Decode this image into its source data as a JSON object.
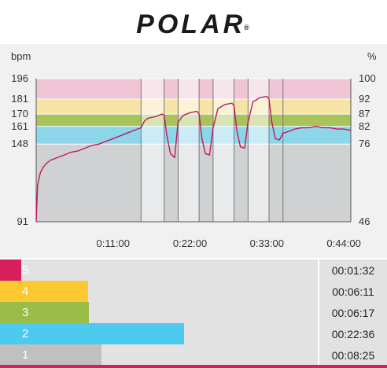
{
  "header": {
    "logo_text": "POLAR",
    "logo_reg": "®"
  },
  "axes": {
    "left_unit": "bpm",
    "right_unit": "%",
    "left_ticks": [
      "196",
      "181",
      "170",
      "161",
      "148",
      "91"
    ],
    "right_ticks": [
      "100",
      "92",
      "87",
      "82",
      "76",
      "46"
    ],
    "x_ticks": [
      "0:11:00",
      "0:22:00",
      "0:33:00",
      "0:44:00"
    ]
  },
  "chart_data": {
    "type": "line",
    "title": "",
    "xlabel": "",
    "ylabel": "bpm",
    "ylim": [
      91,
      196
    ],
    "xlim_minutes": [
      0,
      45
    ],
    "zone_bounds_bpm": [
      91,
      148,
      161,
      170,
      181,
      196
    ],
    "zone_colors": [
      "#cfd1d2",
      "#8dd6ea",
      "#a8c35a",
      "#f6e3a6",
      "#f0c6d6"
    ],
    "x_ticks_minutes": [
      11,
      22,
      33,
      44
    ],
    "interval_lines_minutes": [
      15,
      18.3,
      20.3,
      23.3,
      25.3,
      28.3,
      30.3,
      33.3,
      35.3
    ],
    "series": [
      {
        "color": "#c2185b",
        "x": [
          0,
          0.2,
          0.6,
          1,
          1.5,
          2,
          3,
          4,
          5,
          6,
          7,
          8,
          9,
          10,
          11,
          12,
          13,
          14,
          15,
          15.5,
          16,
          17,
          18,
          18.3,
          18.7,
          19.2,
          19.8,
          20.3,
          21,
          22,
          23,
          23.3,
          23.7,
          24.2,
          24.8,
          25.3,
          26,
          27,
          28,
          28.3,
          28.7,
          29.2,
          29.8,
          30.3,
          31,
          32,
          33,
          33.3,
          33.7,
          34.2,
          34.8,
          35.3,
          36,
          37,
          38,
          39,
          40,
          41,
          42,
          43,
          44,
          45
        ],
        "y": [
          91,
          118,
          127,
          131,
          134,
          136,
          138,
          140,
          142,
          143,
          145,
          147,
          148,
          150,
          152,
          154,
          156,
          158,
          160,
          165,
          167,
          168,
          170,
          169,
          154,
          141,
          138,
          164,
          169,
          171,
          172,
          170,
          152,
          141,
          140,
          160,
          174,
          177,
          178,
          176,
          158,
          146,
          145,
          164,
          179,
          182,
          183,
          181,
          164,
          152,
          151,
          156,
          157,
          159,
          160,
          160,
          161,
          160,
          160,
          159,
          159,
          158
        ]
      }
    ]
  },
  "zones": [
    {
      "num": "5",
      "color": "#d81e5b",
      "fraction": 0.068,
      "time": "00:01:32"
    },
    {
      "num": "4",
      "color": "#fdc830",
      "fraction": 0.277,
      "time": "00:06:11"
    },
    {
      "num": "3",
      "color": "#99bd48",
      "fraction": 0.28,
      "time": "00:06:17"
    },
    {
      "num": "2",
      "color": "#4ccbef",
      "fraction": 0.579,
      "time": "00:22:36"
    },
    {
      "num": "1",
      "color": "#c0c0c0",
      "fraction": 0.319,
      "time": "00:08:25"
    }
  ]
}
